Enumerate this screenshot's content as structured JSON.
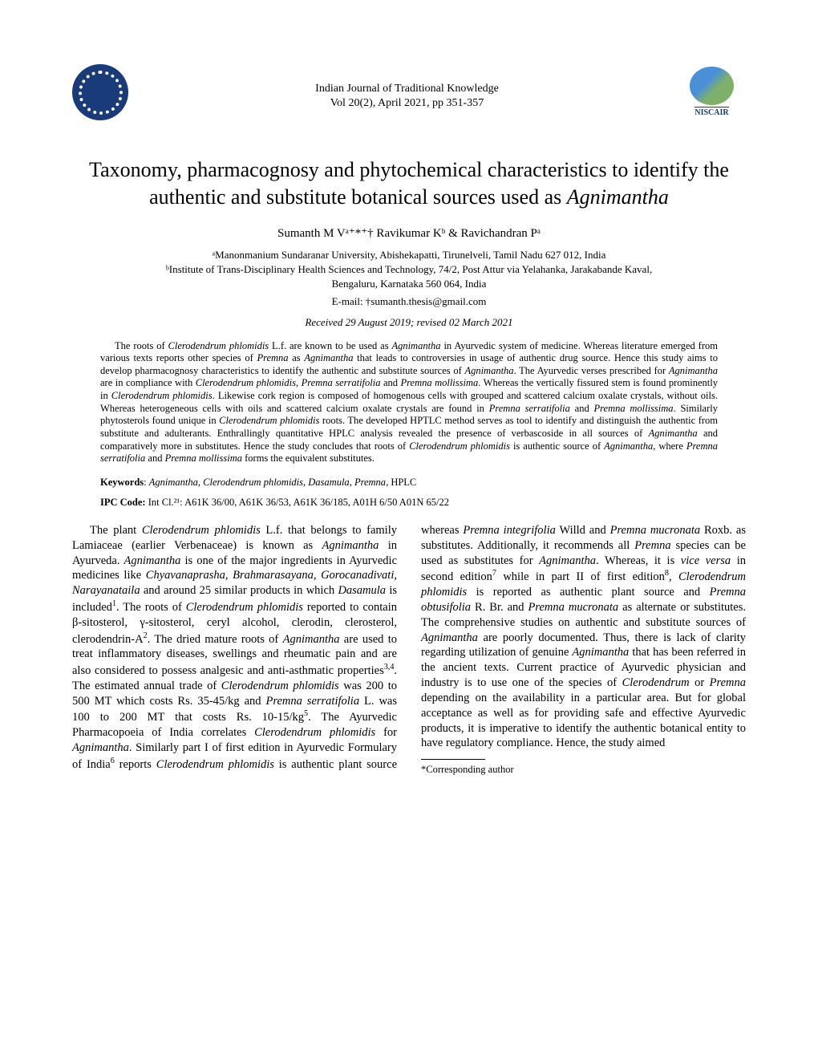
{
  "journal": {
    "name": "Indian Journal of Traditional Knowledge",
    "volume": "Vol 20(2), April 2021, pp 351-357"
  },
  "logos": {
    "left_label": "CSIR",
    "right_label": "NISCAIR"
  },
  "title": "Taxonomy, pharmacognosy and phytochemical characteristics to identify the authentic and substitute botanical sources used as ",
  "title_italic": "Agnimantha",
  "authors": "Sumanth M Vᵃ⁺*⁺† Ravikumar Kᵇ & Ravichandran Pᵃ",
  "affiliations": [
    "ᵃManonmanium Sundaranar University, Abishekapatti, Tirunelveli, Tamil Nadu 627 012, India",
    "ᵇInstitute of Trans-Disciplinary Health Sciences and Technology, 74/2, Post Attur via Yelahanka, Jarakabande Kaval,",
    "Bengaluru, Karnataka 560 064, India"
  ],
  "email": "E-mail: †sumanth.thesis@gmail.com",
  "received": "Received 29 August 2019; revised 02 March 2021",
  "abstract": "The roots of Clerodendrum phlomidis L.f. are known to be used as Agnimantha in Ayurvedic system of medicine. Whereas literature emerged from various texts reports other species of Premna as Agnimantha that leads to controversies in usage of authentic drug source. Hence this study aims to develop pharmacognosy characteristics to identify the authentic and substitute sources of Agnimantha. The Ayurvedic verses prescribed for Agnimantha are in compliance with Clerodendrum phlomidis, Premna serratifolia and Premna mollissima. Whereas the vertically fissured stem is found prominently in Clerodendrum phlomidis. Likewise cork region is composed of homogenous cells with grouped and scattered calcium oxalate crystals, without oils. Whereas heterogeneous cells with oils and scattered calcium oxalate crystals are found in Premna serratifolia and Premna mollissima. Similarly phytosterols found unique in Clerodendrum phlomidis roots. The developed HPTLC method serves as tool to identify and distinguish the authentic from substitute and adulterants. Enthrallingly quantitative HPLC analysis revealed the presence of verbascoside in all sources of Agnimantha and comparatively more in substitutes. Hence the study concludes that roots of Clerodendrum phlomidis is authentic source of Agnimantha, where Premna serratifolia and Premna mollissima forms the equivalent substitutes.",
  "keywords_label": "Keywords",
  "keywords": ": Agnimantha, Clerodendrum phlomidis, Dasamula, Premna, HPLC",
  "ipc_label": "IPC Code:",
  "ipc": " Int Cl.²¹: A61K 36/00, A61K 36/53, A61K 36/185, A01H 6/50 A01N 65/22",
  "body_col1": "The plant Clerodendrum phlomidis L.f. that belongs to family Lamiaceae (earlier Verbenaceae) is known as Agnimantha in Ayurveda. Agnimantha is one of the major ingredients in Ayurvedic medicines like Chyavanaprasha, Brahmarasayana, Gorocanadivati, Narayanataila and around 25 similar products in which Dasamula is included¹. The roots of Clerodendrum phlomidis reported to contain β-sitosterol, γ-sitosterol, ceryl alcohol, clerodin, clerosterol, clerodendrin-A². The dried mature roots of Agnimantha are used to treat inflammatory diseases, swellings and rheumatic pain and are also considered to possess analgesic and anti-asthmatic properties³⁺⁴. The estimated annual trade of Clerodendrum phlomidis was 200 to 500 MT which costs Rs. 35-45/kg and Premna serratifolia L. was 100 to 200 MT that costs Rs. 10-15/kg⁵. The Ayurvedic Pharmacopoeia of India correlates Clerodendrum phlomidis for Agnimantha. Similarly",
  "body_col2": "part I of first edition in Ayurvedic Formulary of India⁶ reports Clerodendrum phlomidis is authentic plant source whereas Premna integrifolia Willd and Premna mucronata Roxb. as substitutes. Additionally, it recommends all Premna species can be used as substitutes for Agnimantha. Whereas, it is vice versa in second edition⁷ while in part II of first edition⁸, Clerodendrum phlomidis is reported as authentic plant source and Premna obtusifolia R. Br. and Premna mucronata as alternate or substitutes. The comprehensive studies on authentic and substitute sources of Agnimantha are poorly documented. Thus, there is lack of clarity regarding utilization of genuine Agnimantha that has been referred in the ancient texts. Current practice of Ayurvedic physician and industry is to use one of the species of Clerodendrum or Premna depending on the availability in a particular area. But for global acceptance as well as for providing safe and effective Ayurvedic products, it is imperative to identify the authentic botanical entity to have regulatory compliance. Hence, the study aimed",
  "corresponding": "*Corresponding author"
}
